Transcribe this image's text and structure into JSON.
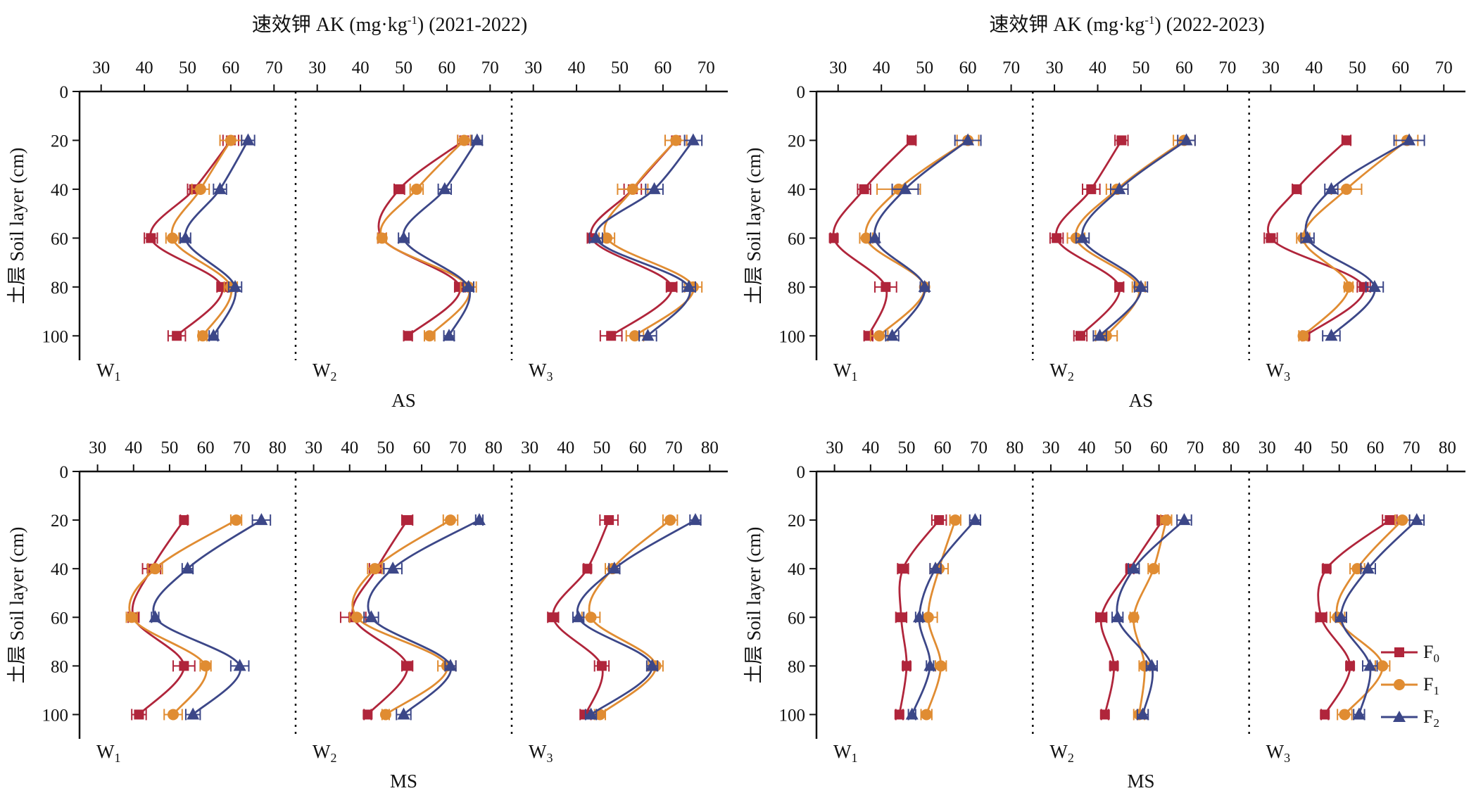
{
  "colors": {
    "F0": "#b0253b",
    "F1": "#e08c32",
    "F2": "#3c4788"
  },
  "legend": [
    {
      "key": "F0",
      "base": "F",
      "sub": "0"
    },
    {
      "key": "F1",
      "base": "F",
      "sub": "1"
    },
    {
      "key": "F2",
      "base": "F",
      "sub": "2"
    }
  ],
  "chart_data": {
    "type": "line",
    "ylabel": "土层 Soil layer (cm)",
    "ylim": [
      0,
      110
    ],
    "yticks": [
      0,
      20,
      40,
      60,
      80,
      100
    ],
    "depths": [
      20,
      40,
      60,
      80,
      100
    ],
    "series_names": [
      "F0",
      "F1",
      "F2"
    ],
    "panels": [
      {
        "id": "AS-2021-2022",
        "title": "速效钾 AK (mg·kg-1) (2021-2022)",
        "title_parts": {
          "main": "速效钾 AK (mg·kg",
          "sup": "-1",
          "tail": ") (2021-2022)"
        },
        "group_label": "AS",
        "xlim": [
          25,
          75
        ],
        "xticks": [
          30,
          40,
          50,
          60,
          70
        ],
        "subpanels": [
          {
            "label": "W",
            "sub": "1",
            "F0": {
              "mean": [
                60,
                51.5,
                41.5,
                58,
                47.5
              ],
              "err": [
                1.8,
                1.5,
                1.5,
                1.2,
                2
              ]
            },
            "F1": {
              "mean": [
                60,
                53,
                46.5,
                60,
                53.5
              ],
              "err": [
                2.5,
                2,
                1.5,
                1.5,
                1
              ]
            },
            "F2": {
              "mean": [
                64,
                57.5,
                49.5,
                61,
                56
              ],
              "err": [
                1.5,
                1.5,
                1.2,
                1.5,
                1
              ]
            }
          },
          {
            "label": "W",
            "sub": "2",
            "F0": {
              "mean": [
                64,
                49,
                45,
                63,
                51
              ],
              "err": [
                1.5,
                1.2,
                1,
                1.2,
                1
              ]
            },
            "F1": {
              "mean": [
                64,
                53,
                45,
                65,
                56
              ],
              "err": [
                1.5,
                1.5,
                1,
                1.8,
                1.2
              ]
            },
            "F2": {
              "mean": [
                67,
                59.5,
                50,
                65,
                60.5
              ],
              "err": [
                1.2,
                1.5,
                1.2,
                1.2,
                1.2
              ]
            }
          },
          {
            "label": "W",
            "sub": "3",
            "F0": {
              "mean": [
                63,
                53,
                43.5,
                62,
                48
              ],
              "err": [
                2.5,
                2,
                1,
                1.2,
                2.5
              ]
            },
            "F1": {
              "mean": [
                63,
                53,
                47,
                67,
                53.5
              ],
              "err": [
                2.5,
                3.5,
                1.8,
                2,
                2
              ]
            },
            "F2": {
              "mean": [
                67,
                58,
                44.5,
                66,
                56.5
              ],
              "err": [
                2,
                2,
                1.5,
                1.5,
                2
              ]
            }
          }
        ]
      },
      {
        "id": "AS-2022-2023",
        "title": "速效钾 AK (mg·kg-1) (2022-2023)",
        "title_parts": {
          "main": "速效钾 AK (mg·kg",
          "sup": "-1",
          "tail": ") (2022-2023)"
        },
        "group_label": "AS",
        "xlim": [
          25,
          75
        ],
        "xticks": [
          30,
          40,
          50,
          60,
          70
        ],
        "subpanels": [
          {
            "label": "W",
            "sub": "1",
            "F0": {
              "mean": [
                47,
                36,
                29,
                41,
                37
              ],
              "err": [
                1,
                1.5,
                0.8,
                2.5,
                1
              ]
            },
            "F1": {
              "mean": [
                60,
                44,
                36.5,
                50,
                39.5
              ],
              "err": [
                2.5,
                5,
                1.5,
                1,
                2
              ]
            },
            "F2": {
              "mean": [
                60,
                45.5,
                38.5,
                50,
                42.5
              ],
              "err": [
                3,
                3,
                1,
                1,
                1.5
              ]
            }
          },
          {
            "label": "W",
            "sub": "2",
            "F0": {
              "mean": [
                45.5,
                38.5,
                30.5,
                45,
                36
              ],
              "err": [
                1.5,
                2,
                1.5,
                1,
                1.5
              ]
            },
            "F1": {
              "mean": [
                60,
                44.5,
                35,
                49.5,
                42
              ],
              "err": [
                2.5,
                2.5,
                2,
                1.5,
                2.5
              ]
            },
            "F2": {
              "mean": [
                60.5,
                45,
                36.5,
                50,
                40.5
              ],
              "err": [
                2,
                2,
                1.5,
                1.5,
                1.5
              ]
            }
          },
          {
            "label": "W",
            "sub": "3",
            "F0": {
              "mean": [
                47.5,
                36,
                30,
                51.5,
                38
              ],
              "err": [
                1,
                1,
                1.5,
                1.5,
                0.8
              ]
            },
            "F1": {
              "mean": [
                61.5,
                47.5,
                37.5,
                48,
                37.5
              ],
              "err": [
                2.5,
                3.5,
                1.5,
                1,
                1
              ]
            },
            "F2": {
              "mean": [
                62,
                44,
                38.5,
                54,
                44
              ],
              "err": [
                3.5,
                1.5,
                1.5,
                2,
                2
              ]
            }
          }
        ]
      },
      {
        "id": "MS-2021-2022",
        "title": "",
        "group_label": "MS",
        "xlim": [
          25,
          85
        ],
        "xticks": [
          30,
          40,
          50,
          60,
          70,
          80
        ],
        "subpanels": [
          {
            "label": "W",
            "sub": "1",
            "F0": {
              "mean": [
                54,
                45,
                40,
                54,
                41.5
              ],
              "err": [
                1,
                2.5,
                1.5,
                3,
                2
              ]
            },
            "F1": {
              "mean": [
                68.5,
                46,
                39.5,
                60,
                51
              ],
              "err": [
                1.5,
                2,
                1.5,
                1.5,
                2.5
              ]
            },
            "F2": {
              "mean": [
                75.5,
                55,
                46,
                69.5,
                56.5
              ],
              "err": [
                2.5,
                1.5,
                1,
                2.5,
                2
              ]
            }
          },
          {
            "label": "W",
            "sub": "2",
            "F0": {
              "mean": [
                56,
                47.5,
                41,
                56,
                45
              ],
              "err": [
                1.5,
                2,
                3.5,
                1.5,
                1
              ]
            },
            "F1": {
              "mean": [
                68,
                47,
                42,
                67,
                50
              ],
              "err": [
                2,
                2,
                2,
                2.5,
                1
              ]
            },
            "F2": {
              "mean": [
                76,
                52,
                46,
                68,
                55
              ],
              "err": [
                1,
                2.5,
                2,
                1.5,
                2
              ]
            }
          },
          {
            "label": "W",
            "sub": "3",
            "F0": {
              "mean": [
                52,
                46,
                36.5,
                50,
                45.5
              ],
              "err": [
                2.5,
                1,
                1.5,
                2,
                1.5
              ]
            },
            "F1": {
              "mean": [
                69,
                53,
                47,
                65,
                49.5
              ],
              "err": [
                2,
                2,
                2.5,
                2,
                1.5
              ]
            },
            "F2": {
              "mean": [
                76,
                53.5,
                43.5,
                64,
                47
              ],
              "err": [
                1.5,
                1.5,
                1.5,
                1.5,
                1.5
              ]
            }
          }
        ]
      },
      {
        "id": "MS-2022-2023",
        "title": "",
        "group_label": "MS",
        "xlim": [
          25,
          85
        ],
        "xticks": [
          30,
          40,
          50,
          60,
          70,
          80
        ],
        "subpanels": [
          {
            "label": "W",
            "sub": "1",
            "F0": {
              "mean": [
                59,
                49,
                48.5,
                50,
                48
              ],
              "err": [
                2,
                1.5,
                1.5,
                1,
                1
              ]
            },
            "F1": {
              "mean": [
                63.5,
                59,
                56,
                59.5,
                55.5
              ],
              "err": [
                1.5,
                2.5,
                2.5,
                1.5,
                1.5
              ]
            },
            "F2": {
              "mean": [
                69,
                58,
                53.5,
                56.5,
                51.5
              ],
              "err": [
                1.5,
                1.5,
                1,
                1,
                1
              ]
            }
          },
          {
            "label": "W",
            "sub": "2",
            "F0": {
              "mean": [
                61,
                52,
                44,
                47.5,
                45
              ],
              "err": [
                1.5,
                1,
                1.5,
                1,
                1
              ]
            },
            "F1": {
              "mean": [
                62,
                58.5,
                53,
                56,
                54.5
              ],
              "err": [
                1.5,
                1.5,
                1,
                1.5,
                1.5
              ]
            },
            "F2": {
              "mean": [
                67,
                53,
                48.5,
                58,
                55.5
              ],
              "err": [
                2,
                1.5,
                1.5,
                1.5,
                1.5
              ]
            }
          },
          {
            "label": "W",
            "sub": "3",
            "F0": {
              "mean": [
                64,
                46.5,
                45,
                53,
                46
              ],
              "err": [
                2,
                1,
                1.5,
                1,
                1
              ]
            },
            "F1": {
              "mean": [
                67.5,
                55,
                49.5,
                62,
                51.5
              ],
              "err": [
                2,
                2,
                2,
                2,
                2
              ]
            },
            "F2": {
              "mean": [
                71.5,
                58,
                50.5,
                58.5,
                55.5
              ],
              "err": [
                2,
                2,
                1.5,
                2,
                1.5
              ]
            }
          }
        ]
      }
    ]
  }
}
